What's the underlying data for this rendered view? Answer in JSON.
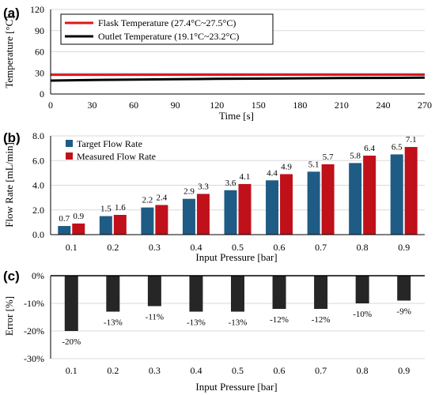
{
  "colors": {
    "flask": "#e0141e",
    "outlet": "#000000",
    "target": "#1f5c85",
    "measured": "#c0101a",
    "error": "#262626",
    "grid": "#d9d9d9"
  },
  "chart_data": [
    {
      "panel_label": "(a)",
      "type": "line",
      "xlabel": "Time [s]",
      "ylabel": "Temperature [°C]",
      "xlim": [
        0,
        270
      ],
      "ylim": [
        0,
        120
      ],
      "xticks": [
        "0",
        "30",
        "60",
        "90",
        "120",
        "150",
        "180",
        "210",
        "240",
        "270"
      ],
      "yticks": [
        "0",
        "30",
        "60",
        "90",
        "120"
      ],
      "grid": true,
      "legend_position": "top-left",
      "series": [
        {
          "name": "Flask Temperature (27.4°C~27.5°C)",
          "x": [
            0,
            270
          ],
          "y": [
            27.4,
            27.5
          ]
        },
        {
          "name": "Outlet Temperature (19.1°C~23.2°C)",
          "x": [
            0,
            30,
            60,
            90,
            120,
            150,
            180,
            210,
            240,
            270
          ],
          "y": [
            19.1,
            19.8,
            20.5,
            21.0,
            21.5,
            21.9,
            22.3,
            22.6,
            22.9,
            23.2
          ]
        }
      ]
    },
    {
      "panel_label": "(b)",
      "type": "bar",
      "xlabel": "Input Pressure [bar]",
      "ylabel": "Flow Rate [mL/min]",
      "ylim": [
        0,
        8
      ],
      "yticks": [
        "0.0",
        "2.0",
        "4.0",
        "6.0",
        "8.0"
      ],
      "grid": true,
      "legend_position": "top-left",
      "categories": [
        "0.1",
        "0.2",
        "0.3",
        "0.4",
        "0.5",
        "0.6",
        "0.7",
        "0.8",
        "0.9"
      ],
      "series": [
        {
          "name": "Target Flow Rate",
          "values": [
            0.7,
            1.5,
            2.2,
            2.9,
            3.6,
            4.4,
            5.1,
            5.8,
            6.5
          ],
          "labels": [
            "0.7",
            "1.5",
            "2.2",
            "2.9",
            "3.6",
            "4.4",
            "5.1",
            "5.8",
            "6.5"
          ]
        },
        {
          "name": "Measured Flow Rate",
          "values": [
            0.9,
            1.6,
            2.4,
            3.3,
            4.1,
            4.9,
            5.7,
            6.4,
            7.1
          ],
          "labels": [
            "0.9",
            "1.6",
            "2.4",
            "3.3",
            "4.1",
            "4.9",
            "5.7",
            "6.4",
            "7.1"
          ]
        }
      ]
    },
    {
      "panel_label": "(c)",
      "type": "bar",
      "xlabel": "Input Pressure [bar]",
      "ylabel": "Error [%]",
      "ylim": [
        -30,
        0
      ],
      "yticks": [
        "-30%",
        "-20%",
        "-10%",
        "0%"
      ],
      "grid": true,
      "categories": [
        "0.1",
        "0.2",
        "0.3",
        "0.4",
        "0.5",
        "0.6",
        "0.7",
        "0.8",
        "0.9"
      ],
      "series": [
        {
          "values": [
            -20,
            -13,
            -11,
            -13,
            -13,
            -12,
            -12,
            -10,
            -9
          ],
          "labels": [
            "-20%",
            "-13%",
            "-11%",
            "-13%",
            "-13%",
            "-12%",
            "-12%",
            "-10%",
            "-9%"
          ]
        }
      ]
    }
  ]
}
